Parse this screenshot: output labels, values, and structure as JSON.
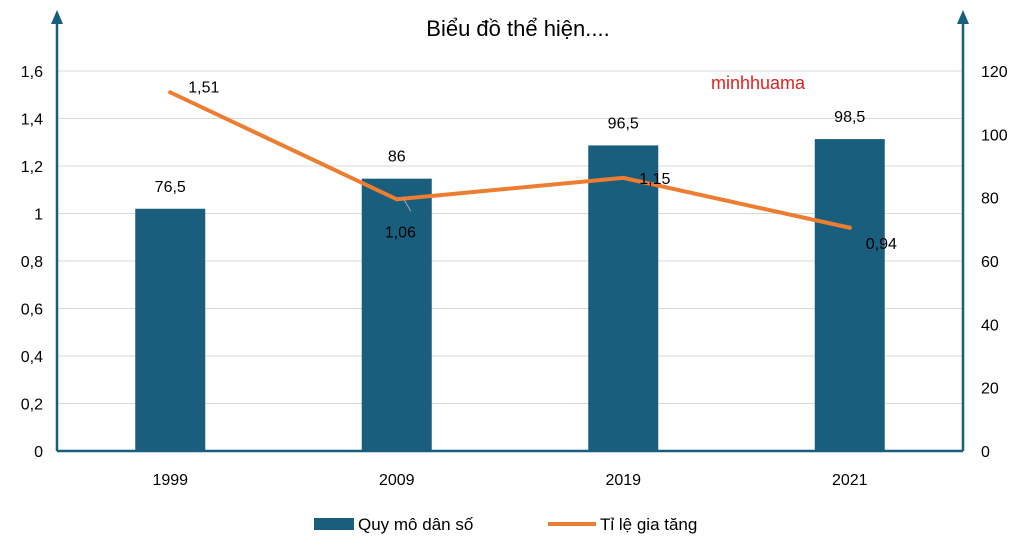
{
  "chart_data": {
    "type": "bar+line",
    "title": "Biểu đồ thể hiện....",
    "watermark": "minhhuama",
    "categories": [
      "1999",
      "2009",
      "2019",
      "2021"
    ],
    "series": [
      {
        "name": "Quy mô dân số",
        "type": "bar",
        "axis": "right",
        "values": [
          76.5,
          86,
          96.5,
          98.5
        ],
        "labels": [
          "76,5",
          "86",
          "96,5",
          "98,5"
        ],
        "color": "#1a5e7e"
      },
      {
        "name": "Tỉ lệ gia tăng",
        "type": "line",
        "axis": "left",
        "values": [
          1.51,
          1.06,
          1.15,
          0.94
        ],
        "labels": [
          "1,51",
          "1,06",
          "1,15",
          "0,94"
        ],
        "color": "#ed7d31"
      }
    ],
    "left_axis": {
      "ylim": [
        0,
        1.6
      ],
      "ticks": [
        "0",
        "0,2",
        "0,4",
        "0,6",
        "0,8",
        "1",
        "1,2",
        "1,4",
        "1,6"
      ]
    },
    "right_axis": {
      "ylim": [
        0,
        120
      ],
      "ticks": [
        "0",
        "20",
        "40",
        "60",
        "80",
        "100",
        "120"
      ]
    },
    "legend_position": "bottom",
    "grid": true,
    "axis_color": "#1a5e7e"
  }
}
